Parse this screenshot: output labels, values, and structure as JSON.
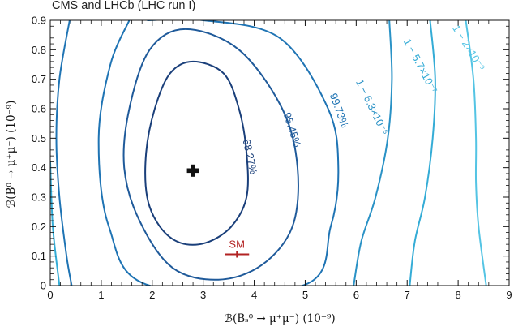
{
  "chart_data": {
    "type": "contour",
    "title": "CMS and LHCb (LHC run I)",
    "xlabel": "ℬ(Bₛ⁰ → μ⁺μ⁻) (10⁻⁹)",
    "ylabel": "ℬ(B⁰ → μ⁺μ⁻) (10⁻⁹)",
    "xlim": [
      0,
      9
    ],
    "ylim": [
      0,
      0.9
    ],
    "xticks": [
      0,
      1,
      2,
      3,
      4,
      5,
      6,
      7,
      8,
      9
    ],
    "yticks": [
      0,
      0.1,
      0.2,
      0.3,
      0.4,
      0.5,
      0.6,
      0.7,
      0.8,
      0.9
    ],
    "xtick_labels": [
      "0",
      "1",
      "2",
      "3",
      "4",
      "5",
      "6",
      "7",
      "8",
      "9"
    ],
    "ytick_labels": [
      "0",
      "0.1",
      "0.2",
      "0.3",
      "0.4",
      "0.5",
      "0.6",
      "0.7",
      "0.8",
      "0.9"
    ],
    "best_fit": {
      "x": 2.8,
      "y": 0.39
    },
    "sm": {
      "label": "SM",
      "x": 3.66,
      "y": 0.106,
      "x_err": [
        3.42,
        3.9
      ]
    },
    "contours": [
      {
        "label": "68.27%",
        "color": "#1a3f7a",
        "points": [
          [
            2.8,
            0.76
          ],
          [
            3.4,
            0.72
          ],
          [
            3.7,
            0.6
          ],
          [
            3.85,
            0.45
          ],
          [
            3.85,
            0.3
          ],
          [
            3.55,
            0.2
          ],
          [
            3.05,
            0.145
          ],
          [
            2.55,
            0.145
          ],
          [
            2.15,
            0.2
          ],
          [
            1.9,
            0.3
          ],
          [
            1.88,
            0.45
          ],
          [
            2.05,
            0.6
          ],
          [
            2.35,
            0.72
          ]
        ],
        "label_pos": [
          3.85,
          0.435
        ]
      },
      {
        "label": "95.45%",
        "color": "#1f5a9a",
        "points": [
          [
            2.65,
            0.87
          ],
          [
            3.7,
            0.8
          ],
          [
            4.55,
            0.6
          ],
          [
            4.85,
            0.4
          ],
          [
            4.75,
            0.2
          ],
          [
            4.15,
            0.07
          ],
          [
            3.3,
            0.02
          ],
          [
            2.4,
            0.06
          ],
          [
            1.75,
            0.22
          ],
          [
            1.45,
            0.4
          ],
          [
            1.55,
            0.6
          ],
          [
            1.95,
            0.8
          ]
        ],
        "label_pos": [
          4.68,
          0.525
        ]
      },
      {
        "label": "99.73%",
        "color": "#1f74b4",
        "points": [
          [
            1.9,
            0.9
          ],
          [
            3.0,
            0.9
          ],
          [
            4.5,
            0.84
          ],
          [
            5.45,
            0.6
          ],
          [
            5.65,
            0.4
          ],
          [
            5.5,
            0.2
          ],
          [
            4.95,
            0.0
          ],
          [
            1.95,
            0.0
          ],
          [
            1.15,
            0.2
          ],
          [
            0.95,
            0.5
          ],
          [
            1.18,
            0.75
          ],
          [
            1.55,
            0.9
          ]
        ],
        "label_pos": [
          5.6,
          0.59
        ]
      },
      {
        "label": "1 − 6.3×10⁻⁵",
        "color": "#2a92c6",
        "points": [
          [
            6.65,
            0.9
          ],
          [
            6.7,
            0.7
          ],
          [
            6.62,
            0.5
          ],
          [
            6.38,
            0.3
          ],
          [
            6.1,
            0.15
          ],
          [
            5.95,
            0.0
          ]
        ],
        "label_pos": [
          6.25,
          0.6
        ]
      },
      {
        "label": "1 − 5.7×10⁻⁷",
        "color": "#34acd6",
        "points": [
          [
            7.45,
            0.9
          ],
          [
            7.55,
            0.7
          ],
          [
            7.5,
            0.5
          ],
          [
            7.35,
            0.3
          ],
          [
            7.15,
            0.15
          ],
          [
            7.05,
            0.0
          ]
        ],
        "label_pos": [
          7.2,
          0.74
        ]
      },
      {
        "label": "1 − 2×10⁻⁹",
        "color": "#54c4e4",
        "points": [
          [
            8.15,
            0.9
          ],
          [
            8.3,
            0.7
          ],
          [
            8.35,
            0.5
          ],
          [
            8.35,
            0.35
          ],
          [
            8.4,
            0.2
          ],
          [
            8.55,
            0.0
          ]
        ],
        "label_pos": [
          8.15,
          0.8
        ]
      },
      {
        "label": "",
        "color": "#1f74b4",
        "points": [
          [
            0.38,
            0.9
          ],
          [
            0.18,
            0.7
          ],
          [
            0.12,
            0.5
          ],
          [
            0.18,
            0.3
          ],
          [
            0.32,
            0.1
          ],
          [
            0.42,
            0.0
          ]
        ],
        "label_pos": null
      },
      {
        "label": "",
        "color": "#34acd6",
        "points": [
          [
            0.0,
            0.42
          ],
          [
            0.05,
            0.2
          ],
          [
            0.18,
            0.0
          ]
        ],
        "label_pos": null
      }
    ]
  }
}
